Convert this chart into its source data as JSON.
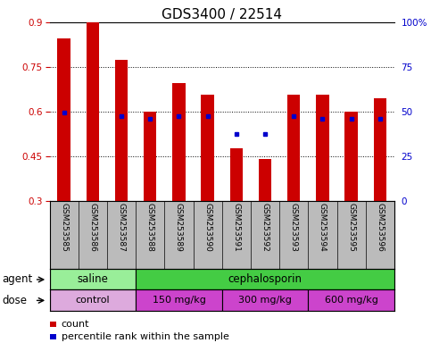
{
  "title": "GDS3400 / 22514",
  "samples": [
    "GSM253585",
    "GSM253586",
    "GSM253587",
    "GSM253588",
    "GSM253589",
    "GSM253590",
    "GSM253591",
    "GSM253592",
    "GSM253593",
    "GSM253594",
    "GSM253595",
    "GSM253596"
  ],
  "count_values": [
    0.845,
    0.9,
    0.775,
    0.6,
    0.695,
    0.655,
    0.475,
    0.44,
    0.655,
    0.655,
    0.6,
    0.645
  ],
  "percentile_values": [
    0.595,
    null,
    0.585,
    0.575,
    0.585,
    0.585,
    0.525,
    0.525,
    0.585,
    0.575,
    0.575,
    0.575
  ],
  "ylim": [
    0.3,
    0.9
  ],
  "yticks_left": [
    0.3,
    0.45,
    0.6,
    0.75,
    0.9
  ],
  "yticks_left_labels": [
    "0.3",
    "0.45",
    "0.6",
    "0.75",
    "0.9"
  ],
  "right_ticks_pct": [
    0,
    25,
    50,
    75,
    100
  ],
  "right_labels": [
    "0",
    "25",
    "50",
    "75",
    "100%"
  ],
  "bar_color": "#cc0000",
  "percentile_color": "#0000cc",
  "agent_groups": [
    {
      "label": "saline",
      "start": 0,
      "end": 3,
      "color": "#99ee99"
    },
    {
      "label": "cephalosporin",
      "start": 3,
      "end": 12,
      "color": "#44cc44"
    }
  ],
  "dose_groups": [
    {
      "label": "control",
      "start": 0,
      "end": 3,
      "color": "#ddaadd"
    },
    {
      "label": "150 mg/kg",
      "start": 3,
      "end": 6,
      "color": "#dd55dd"
    },
    {
      "label": "300 mg/kg",
      "start": 6,
      "end": 9,
      "color": "#dd55dd"
    },
    {
      "label": "600 mg/kg",
      "start": 9,
      "end": 12,
      "color": "#dd55dd"
    }
  ],
  "legend_count_label": "count",
  "legend_percentile_label": "percentile rank within the sample",
  "xlabel_agent": "agent",
  "xlabel_dose": "dose",
  "bar_width": 0.45,
  "title_fontsize": 11,
  "tick_fontsize": 7.5,
  "label_fontsize": 8.5,
  "xtick_fontsize": 6.5,
  "tick_color_left": "#cc0000",
  "tick_color_right": "#0000cc",
  "bg_color": "#ffffff",
  "xticklabel_bg": "#bbbbbb"
}
